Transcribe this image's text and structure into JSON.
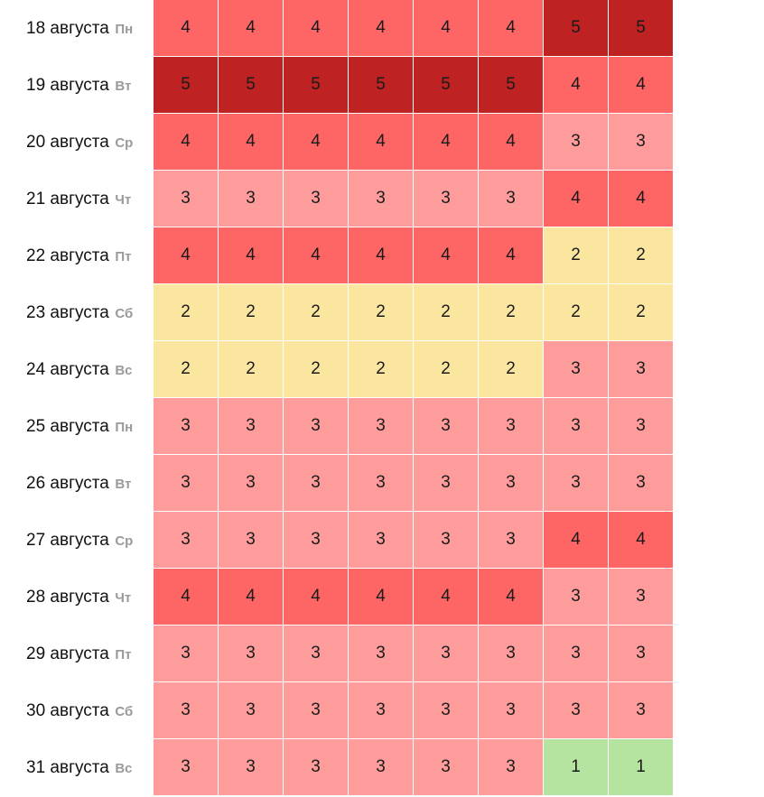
{
  "chart_data": {
    "type": "heatmap",
    "rows": [
      {
        "date": "18 августа",
        "weekday": "Пн",
        "values": [
          4,
          4,
          4,
          4,
          4,
          4,
          5,
          5
        ]
      },
      {
        "date": "19 августа",
        "weekday": "Вт",
        "values": [
          5,
          5,
          5,
          5,
          5,
          5,
          4,
          4
        ]
      },
      {
        "date": "20 августа",
        "weekday": "Ср",
        "values": [
          4,
          4,
          4,
          4,
          4,
          4,
          3,
          3
        ]
      },
      {
        "date": "21 августа",
        "weekday": "Чт",
        "values": [
          3,
          3,
          3,
          3,
          3,
          3,
          4,
          4
        ]
      },
      {
        "date": "22 августа",
        "weekday": "Пт",
        "values": [
          4,
          4,
          4,
          4,
          4,
          4,
          2,
          2
        ]
      },
      {
        "date": "23 августа",
        "weekday": "Сб",
        "values": [
          2,
          2,
          2,
          2,
          2,
          2,
          2,
          2
        ]
      },
      {
        "date": "24 августа",
        "weekday": "Вс",
        "values": [
          2,
          2,
          2,
          2,
          2,
          2,
          3,
          3
        ]
      },
      {
        "date": "25 августа",
        "weekday": "Пн",
        "values": [
          3,
          3,
          3,
          3,
          3,
          3,
          3,
          3
        ]
      },
      {
        "date": "26 августа",
        "weekday": "Вт",
        "values": [
          3,
          3,
          3,
          3,
          3,
          3,
          3,
          3
        ]
      },
      {
        "date": "27 августа",
        "weekday": "Ср",
        "values": [
          3,
          3,
          3,
          3,
          3,
          3,
          4,
          4
        ]
      },
      {
        "date": "28 августа",
        "weekday": "Чт",
        "values": [
          4,
          4,
          4,
          4,
          4,
          4,
          3,
          3
        ]
      },
      {
        "date": "29 августа",
        "weekday": "Пт",
        "values": [
          3,
          3,
          3,
          3,
          3,
          3,
          3,
          3
        ]
      },
      {
        "date": "30 августа",
        "weekday": "Сб",
        "values": [
          3,
          3,
          3,
          3,
          3,
          3,
          3,
          3
        ]
      },
      {
        "date": "31 августа",
        "weekday": "Вс",
        "values": [
          3,
          3,
          3,
          3,
          3,
          3,
          1,
          1
        ]
      }
    ],
    "color_scale": {
      "1": "#b5e4a0",
      "2": "#fbe6a0",
      "3": "#fe9c9c",
      "4": "#fe6565",
      "5": "#be2222"
    },
    "weekday_label_color": "#9a9a9a"
  }
}
